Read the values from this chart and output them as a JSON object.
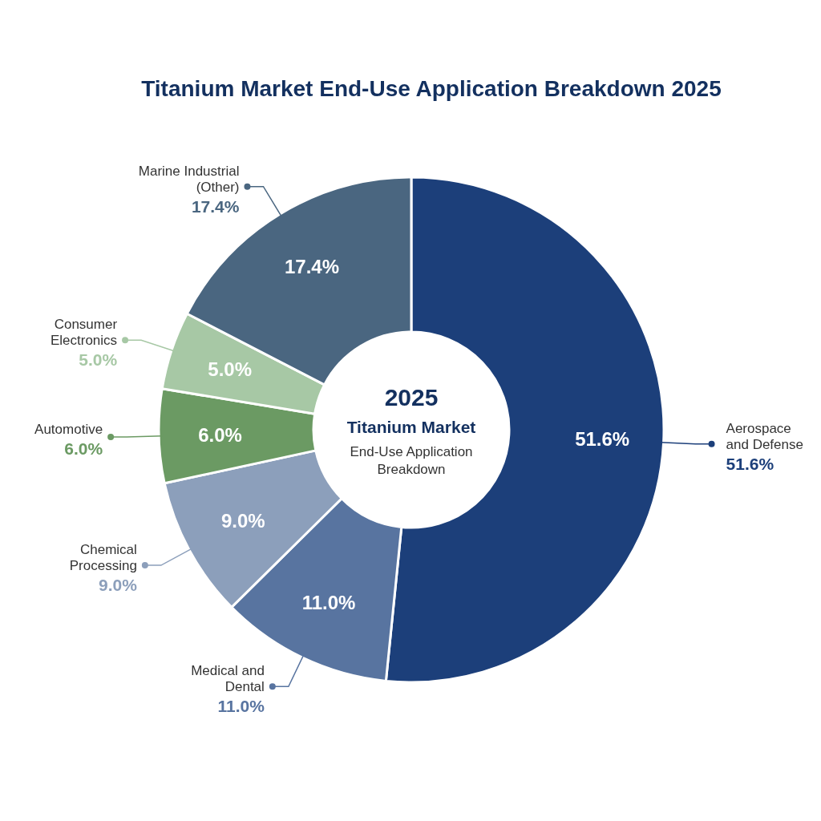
{
  "chart_data": {
    "type": "donut",
    "title": "Titanium Market End-Use Application Breakdown 2025",
    "categories": [
      "Aerospace and Defense",
      "Medical and Dental",
      "Chemical Processing",
      "Automotive",
      "Consumer Electronics",
      "Marine Industrial (Other)"
    ],
    "values": [
      51.6,
      11.0,
      9.0,
      6.0,
      5.0,
      17.4
    ],
    "value_labels": [
      "51.6%",
      "11.0%",
      "9.0%",
      "6.0%",
      "5.0%",
      "17.4%"
    ],
    "colors": [
      "#1c3f7a",
      "#5874a0",
      "#8c9fbb",
      "#6b9a63",
      "#a7c8a5",
      "#4a6680"
    ],
    "annotations": [
      "2025",
      "Titanium Market",
      "End-Use Application Breakdown"
    ],
    "legend": "left"
  }
}
